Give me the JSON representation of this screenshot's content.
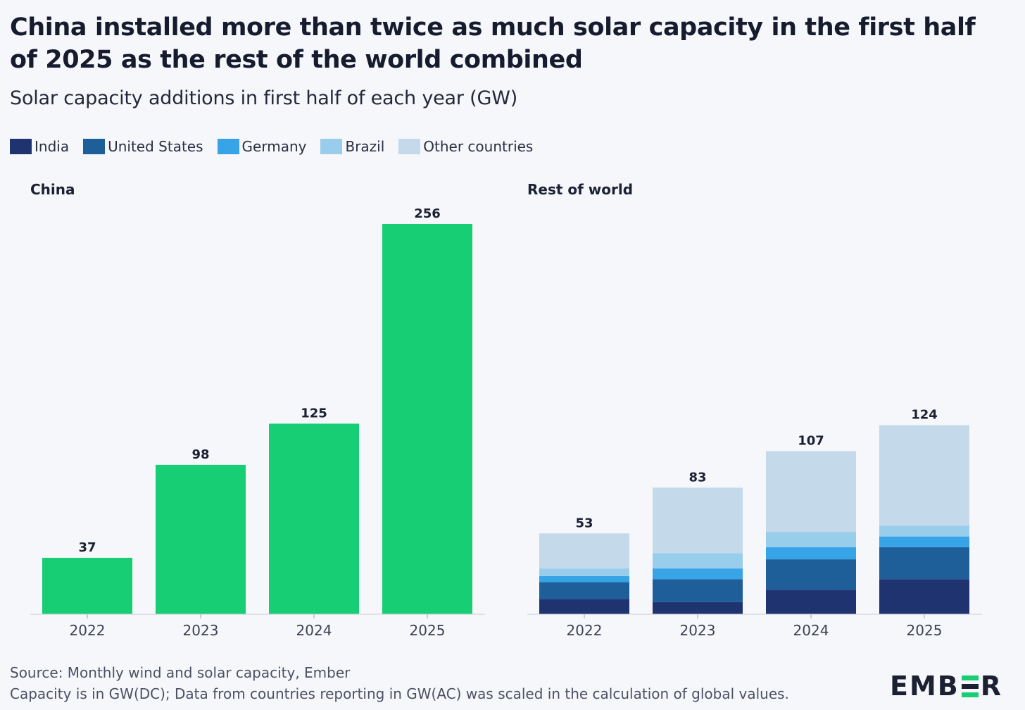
{
  "title": "China installed more than twice as much solar capacity in the first half of 2025 as the rest of the world combined",
  "subtitle": "Solar capacity additions in first half of each year (GW)",
  "legend": [
    {
      "label": "India",
      "color": "#1f3370"
    },
    {
      "label": "United States",
      "color": "#1e5f9a"
    },
    {
      "label": "Germany",
      "color": "#36a4e6"
    },
    {
      "label": "Brazil",
      "color": "#99cdec"
    },
    {
      "label": "Other countries",
      "color": "#c4d9ea"
    }
  ],
  "chart_data": [
    {
      "type": "bar",
      "title": "China",
      "categories": [
        "2022",
        "2023",
        "2024",
        "2025"
      ],
      "values": [
        37,
        98,
        125,
        256
      ],
      "color": "#17ce74",
      "ylim": [
        0,
        256
      ],
      "grid": false
    },
    {
      "type": "bar",
      "stacked": true,
      "title": "Rest of world",
      "categories": [
        "2022",
        "2023",
        "2024",
        "2025"
      ],
      "totals": [
        53,
        83,
        107,
        124
      ],
      "series": [
        {
          "name": "India",
          "values": [
            10,
            8,
            16,
            23
          ]
        },
        {
          "name": "United States",
          "values": [
            11,
            15,
            20,
            21
          ]
        },
        {
          "name": "Germany",
          "values": [
            4,
            7,
            8,
            7
          ]
        },
        {
          "name": "Brazil",
          "values": [
            5,
            10,
            10,
            7
          ]
        },
        {
          "name": "Other countries",
          "values": [
            23,
            43,
            53,
            66
          ]
        }
      ],
      "ylim": [
        0,
        256
      ],
      "grid": false
    }
  ],
  "footer": {
    "source": "Source: Monthly wind and solar capacity, Ember",
    "note": "Capacity is in GW(DC); Data from countries reporting in GW(AC) was scaled in the calculation of global values."
  },
  "logo": {
    "text": "EMBER",
    "accent_color": "#17ce74"
  }
}
